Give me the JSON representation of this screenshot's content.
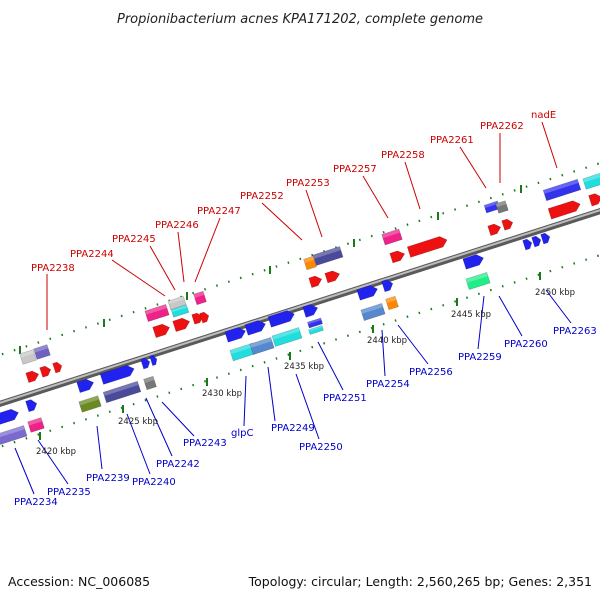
{
  "title": "Propionibacterium acnes KPA171202, complete genome",
  "accession": "Accession: NC_006085",
  "topology": "Topology: circular; Length: 2,560,265 bp; Genes: 2,351",
  "colors": {
    "top_label": "#cc0000",
    "bottom_label": "#0000cc",
    "backbone": "#888888",
    "tick": "#1a7a1a"
  },
  "kbp_labels": [
    "2420 kbp",
    "2425 kbp",
    "2430 kbp",
    "2435 kbp",
    "2440 kbp",
    "2445 kbp",
    "2450 kbp"
  ],
  "top_labels": [
    "PPA2238",
    "PPA2244",
    "PPA2245",
    "PPA2246",
    "PPA2247",
    "PPA2252",
    "PPA2253",
    "PPA2257",
    "PPA2258",
    "PPA2261",
    "PPA2262",
    "nadE"
  ],
  "bottom_labels": [
    "PPA2234",
    "PPA2235",
    "PPA2239",
    "PPA2240",
    "PPA2242",
    "PPA2243",
    "glpC",
    "PPA2249",
    "PPA2250",
    "PPA2251",
    "PPA2254",
    "PPA2256",
    "PPA2259",
    "PPA2260",
    "PPA2263"
  ]
}
